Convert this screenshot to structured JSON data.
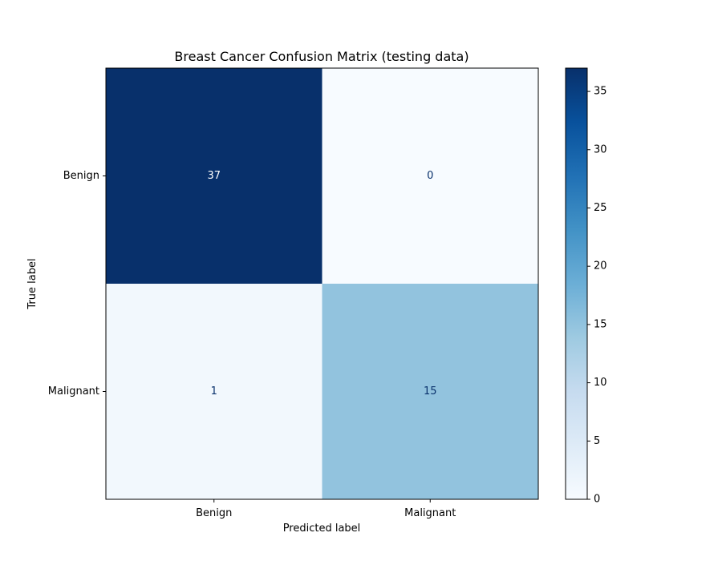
{
  "chart_data": {
    "type": "heatmap",
    "title": "Breast Cancer Confusion Matrix (testing data)",
    "xlabel": "Predicted label",
    "ylabel": "True label",
    "x_categories": [
      "Benign",
      "Malignant"
    ],
    "y_categories": [
      "Benign",
      "Malignant"
    ],
    "matrix": [
      [
        37,
        0
      ],
      [
        1,
        15
      ]
    ],
    "colormap": "Blues",
    "colorbar": {
      "min": 0,
      "max": 37,
      "ticks": [
        0,
        5,
        10,
        15,
        20,
        25,
        30,
        35
      ]
    },
    "grid": false
  },
  "colors": {
    "dark_text": "#08306b",
    "light_text": "#ffffff"
  }
}
